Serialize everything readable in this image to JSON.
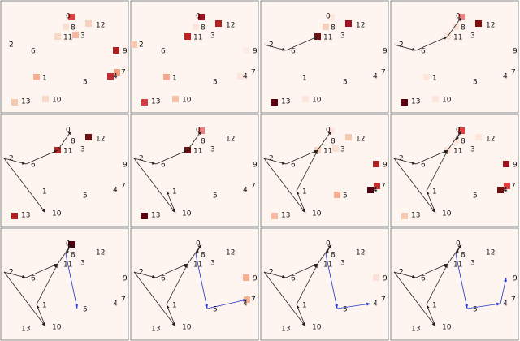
{
  "nodes": [
    {
      "label": "0"
    },
    {
      "label": "1"
    },
    {
      "label": "2"
    },
    {
      "label": "3"
    },
    {
      "label": "4"
    },
    {
      "label": "5"
    },
    {
      "label": "6"
    },
    {
      "label": "7"
    },
    {
      "label": "8"
    },
    {
      "label": "9"
    },
    {
      "label": "10"
    },
    {
      "label": "11"
    },
    {
      "label": "12"
    },
    {
      "label": "13"
    }
  ],
  "background": "#fff5f0",
  "edge_color": "#222222",
  "path_color": "#2233cc",
  "panels": [
    {
      "squares": [
        {
          "node": 0,
          "color": "#e04040"
        },
        {
          "node": 12,
          "color": "#f8d0c0"
        },
        {
          "node": 8,
          "color": "#fbe0d4"
        },
        {
          "node": 11,
          "color": "#f9d8c8"
        },
        {
          "node": 3,
          "color": "#f6b8a0"
        },
        {
          "node": 9,
          "color": "#b02020"
        },
        {
          "node": 7,
          "color": "#f0a080"
        },
        {
          "node": 4,
          "color": "#c03030"
        },
        {
          "node": 1,
          "color": "#f6b090"
        },
        {
          "node": 13,
          "color": "#f6c8b0"
        },
        {
          "node": 10,
          "color": "#f8d8c8"
        }
      ],
      "edges": [],
      "path": []
    },
    {
      "squares": [
        {
          "node": 0,
          "color": "#a01020"
        },
        {
          "node": 12,
          "color": "#b02020"
        },
        {
          "node": 8,
          "color": "#fde6dc"
        },
        {
          "node": 11,
          "color": "#c02020"
        },
        {
          "node": 2,
          "color": "#f6c8b0"
        },
        {
          "node": 9,
          "color": "#fdebe4"
        },
        {
          "node": 4,
          "color": "#fde6dc"
        },
        {
          "node": 1,
          "color": "#f4a890"
        },
        {
          "node": 13,
          "color": "#d04040"
        },
        {
          "node": 10,
          "color": "#f6c0a8"
        }
      ],
      "edges": [],
      "path": []
    },
    {
      "squares": [
        {
          "node": 0,
          "color": "#fde6dc"
        },
        {
          "node": 12,
          "color": "#a01020"
        },
        {
          "node": 8,
          "color": "#f8d0c0"
        },
        {
          "node": 11,
          "color": "#701010"
        },
        {
          "node": 13,
          "color": "#600010"
        },
        {
          "node": 10,
          "color": "#fde6dc"
        }
      ],
      "edges": [
        [
          2,
          6
        ],
        [
          6,
          11
        ]
      ],
      "path": []
    },
    {
      "squares": [
        {
          "node": 0,
          "color": "#f08080"
        },
        {
          "node": 12,
          "color": "#801010"
        },
        {
          "node": 8,
          "color": "#fbe0d4"
        },
        {
          "node": 11,
          "color": "#fbe0d4"
        },
        {
          "node": 13,
          "color": "#600010"
        },
        {
          "node": 10,
          "color": "#fde6dc"
        },
        {
          "node": 1,
          "color": "#fde6dc"
        }
      ],
      "edges": [
        [
          2,
          6
        ],
        [
          6,
          11
        ],
        [
          11,
          0
        ]
      ],
      "path": []
    },
    {
      "squares": [
        {
          "node": 12,
          "color": "#701010"
        },
        {
          "node": 11,
          "color": "#c02020"
        },
        {
          "node": 13,
          "color": "#b02020"
        }
      ],
      "edges": [
        [
          2,
          6
        ],
        [
          6,
          11
        ],
        [
          11,
          0
        ],
        [
          2,
          10
        ]
      ],
      "path": []
    },
    {
      "squares": [
        {
          "node": 0,
          "color": "#f08080"
        },
        {
          "node": 11,
          "color": "#701010"
        },
        {
          "node": 13,
          "color": "#600010"
        }
      ],
      "edges": [
        [
          2,
          6
        ],
        [
          6,
          11
        ],
        [
          11,
          0
        ],
        [
          2,
          10
        ],
        [
          10,
          1
        ]
      ],
      "path": []
    },
    {
      "squares": [
        {
          "node": 0,
          "color": "#fde6dc"
        },
        {
          "node": 12,
          "color": "#f6c8b0"
        },
        {
          "node": 11,
          "color": "#f8d0c0"
        },
        {
          "node": 3,
          "color": "#fbe0d4"
        },
        {
          "node": 9,
          "color": "#b02020"
        },
        {
          "node": 7,
          "color": "#c03030"
        },
        {
          "node": 4,
          "color": "#500010"
        },
        {
          "node": 5,
          "color": "#f6b090"
        },
        {
          "node": 13,
          "color": "#f6b8a0"
        }
      ],
      "edges": [
        [
          2,
          6
        ],
        [
          6,
          11
        ],
        [
          11,
          0
        ],
        [
          2,
          10
        ],
        [
          10,
          1
        ],
        [
          1,
          11
        ]
      ],
      "path": []
    },
    {
      "squares": [
        {
          "node": 0,
          "color": "#e04040"
        },
        {
          "node": 12,
          "color": "#fde6dc"
        },
        {
          "node": 8,
          "color": "#fde6dc"
        },
        {
          "node": 11,
          "color": "#fbe0d4"
        },
        {
          "node": 9,
          "color": "#a01020"
        },
        {
          "node": 7,
          "color": "#e04040"
        },
        {
          "node": 4,
          "color": "#701010"
        },
        {
          "node": 13,
          "color": "#f6c8b0"
        }
      ],
      "edges": [
        [
          2,
          6
        ],
        [
          6,
          11
        ],
        [
          11,
          0
        ],
        [
          2,
          10
        ],
        [
          10,
          1
        ],
        [
          1,
          11
        ],
        [
          0,
          8
        ]
      ],
      "path": []
    },
    {
      "squares": [
        {
          "node": 0,
          "color": "#500010"
        }
      ],
      "edges": [
        [
          2,
          6
        ],
        [
          6,
          11
        ],
        [
          11,
          0
        ],
        [
          2,
          10
        ],
        [
          10,
          1
        ],
        [
          1,
          11
        ],
        [
          0,
          8
        ]
      ],
      "path": [
        [
          8,
          5
        ]
      ]
    },
    {
      "squares": [
        {
          "node": 9,
          "color": "#f6b090"
        },
        {
          "node": 7,
          "color": "#f6b090"
        }
      ],
      "edges": [
        [
          2,
          6
        ],
        [
          6,
          11
        ],
        [
          11,
          0
        ],
        [
          2,
          10
        ],
        [
          10,
          1
        ],
        [
          1,
          11
        ],
        [
          0,
          8
        ]
      ],
      "path": [
        [
          8,
          5
        ],
        [
          5,
          7
        ]
      ]
    },
    {
      "squares": [
        {
          "node": 9,
          "color": "#fbe0d4"
        }
      ],
      "edges": [
        [
          2,
          6
        ],
        [
          6,
          11
        ],
        [
          11,
          0
        ],
        [
          2,
          10
        ],
        [
          10,
          1
        ],
        [
          1,
          11
        ],
        [
          0,
          8
        ]
      ],
      "path": [
        [
          8,
          5
        ],
        [
          5,
          4
        ]
      ]
    },
    {
      "squares": [],
      "edges": [
        [
          2,
          6
        ],
        [
          6,
          11
        ],
        [
          11,
          0
        ],
        [
          2,
          10
        ],
        [
          10,
          1
        ],
        [
          1,
          11
        ],
        [
          0,
          8
        ]
      ],
      "path": [
        [
          8,
          5
        ],
        [
          5,
          4
        ],
        [
          4,
          9
        ]
      ]
    }
  ]
}
